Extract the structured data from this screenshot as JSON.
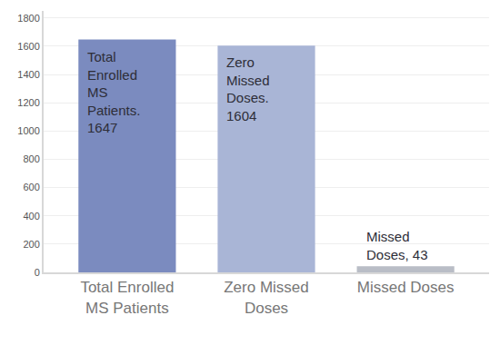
{
  "chart_data": {
    "type": "bar",
    "categories": [
      "Total Enrolled MS Patients",
      "Zero Missed Doses",
      "Missed Doses"
    ],
    "values": [
      1647,
      1604,
      43
    ],
    "value_labels": [
      "Total Enrolled MS Patients. 1647",
      "Zero Missed Doses. 1604",
      "Missed Doses, 43"
    ],
    "colors": [
      "#7b8bbf",
      "#a9b5d6",
      "#b9bdc6"
    ],
    "data_labels": true,
    "ylim": [
      0,
      1850
    ],
    "yticks": [
      0,
      200,
      400,
      600,
      800,
      1000,
      1200,
      1400,
      1600,
      1800
    ],
    "grid": true
  }
}
